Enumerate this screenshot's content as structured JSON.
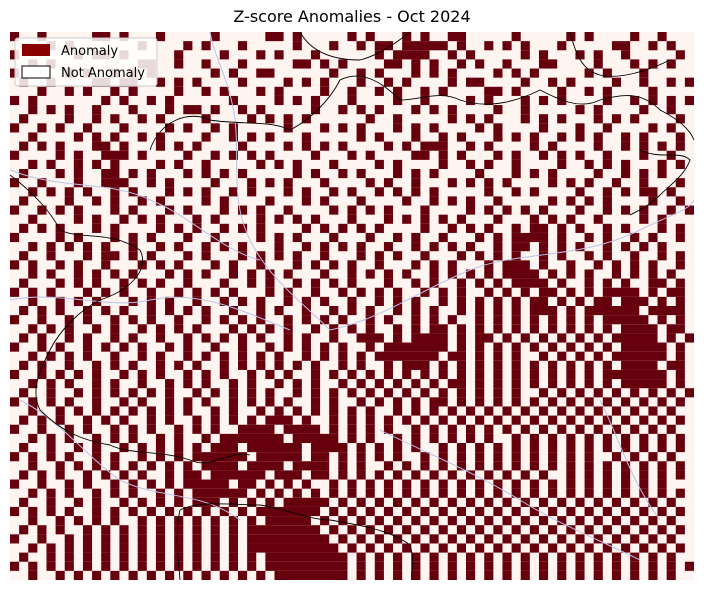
{
  "title": "Z-score Anomalies - Oct 2024",
  "legend": [
    {
      "label": "Anomaly",
      "color": "#8b0000"
    },
    {
      "label": "Not Anomaly",
      "color": "#ffffff"
    }
  ],
  "raster": {
    "cell_color": "#67000d",
    "background": "#fff5f0",
    "rows": [
      "#..#.....##.#...#.....#.....##.#.....#.#...#.#..##.....#.....#.#....#..#...",
      "....#.#.......#....#.#...#.....#...#..#.##.#####.#..#.#.#...#.....##..#.#..",
      "#......#.##.#.....#....#...#.#...#......#.####..#.#.....#.#...#.#..#.....#.",
      "..#.#.........##..#..#...#.....##.#.#....##.#.#..#.#..#...##....#...#.#.#..",
      "#.....#.#..#.#.#......#.#..##......#..#.#...#.#.#....#.#.#.....#.#...#.....",
      ".#..#....##.##..#.#.#....#....#.#.#...#..#.#....#.##....#..#.#....#..#..#.#",
      "...#..#.#..#.#....#..#.#...#.#....#..#..#.#..#.#....##.#....#..#.#....#....",
      "#.#.......#.#..#.#......#....#.#.#...#....#..#....#.#...#.#.#....#..#.#.#.#",
      "..#.#.#..#...#...#.##.#..#.#.....#..#.#.#...#.#.#....#..#.....#.#....#..#..",
      ".#....#..#.#..#.#....#....#.#.#.#......#..#.....#.#.#...#.#.#...#.#.#....#.",
      "#..#.#..#...#....#.#..#.#.....#...#.#.#...#.#.#....#.#....#...#..#....#.#..",
      "..#....#.#.#..#.#....#..#.#.#...#.....#.#...#..#.#...#.#.#..#.#.#..#.#...#.",
      ".#.#.#...##.#...#.#.#....#....#.#.#.#....#.#.###..#.#....#.#....#..#.#.#.#.",
      "#....#.#..###.#....#..#.#.#.#....#...#.#....##.#.#...#.#..#.#.#..#...#..#..",
      "..#.#..#.#.#....#.#..#.....#.#.#...#....#.#....#..#.#..#....#..#.#.#...#.#.",
      ".#...#.#..##.#.#...#.#.#.#.....#.#..#.#...#.#.#....#...#.#.#....#..#.#.#...",
      "#..#...#..###..#.#....#...#.#.#...#....#.#..#...#.#.#.#....#.#.#..#..#...#.",
      "..#.#.#.#..#.#...#.#.#..#.#...#.#..#.#..#.#.#.#.....#..#.#....#..#.#.##.#..",
      ".#....#..#.#..#.#....#.#....#...#.#...#....#..#.#.#..#.....#.#.#.#....#..#.",
      "#..#.#.#...#.#...#.#...#.#.#..#....#.#.#.#...#....#.#.#.#.#...#..#.#.#..#.#",
      "..#....#.#..#.#.#...#.#....#.#.#.#...#...#.#.#.#.#...#...#.#.#..#....#.#...",
      ".#.#.#...#.#....#.#.#..#.#.#....#.#.#.#.#....#..#.#.#..#.##.#.#..#.#...#.#.",
      "#....#.#...#.#.#...#..#....#.#.#...#...#..#.#..#...#.#.####.#..#.#..#.#..#.",
      "..#.#.#.#.#..#..#.#..#.#.#...#..#.#.#.#..#..#.#.#.#..#.##.#.#.#..#.#.#.#...",
      ".#..#...#.##.#.#...#.#...#.#.#.#..#...#.#.#..#...#.#.#.#..#.#..#.#..#..#.#.",
      "#.#..#.#..#...#.#.#...#.#..#...#.#.#.#..#...#.#.#...#.###.#..#..#.#.#.#..#.",
      "..#.#..#.#.#.#...#.#.#..#.#.#.#...#..#.#.#.#..#.#.#.#.####.#.#.#..#.#.#.#..",
      ".#...#.#.#..#.#.#..#...#..#.#..#.#.#.#...#..#.#..#.#.#.####.#..#.#.#..##.#.",
      "#.#.#...#.#.#..#..#.#.#.#...#.#..#..#.#.#.#..#.#.#..#.#.#.##.#.#.####.#.##.",
      "..#..#.#.#...#.#.#..#..#.#.#..#.#.#..#..#.#.#..#.#.#.#.#.##.#.#.##.###.#.#.",
      ".#.#.#..#.#.#..#.#.#.#..#..#.#..#..#.#.#..#.#.#..#.#.#.#.###.#.######.####.",
      "#..#..#.#..#.#.#..#..#.#.#.#..#.#.#.#..#.#..#.#.#..#.#.#.#.#.#.#.#####.#.#.",
      "..#.#.#..#.#..#.#.#.#...#.#.#.#..#.#.#.#..#.#.##.#.#.#.#.#.#.#.#.#.####.##.",
      ".#.#..#.#..#.#..#..#.#.#.#.#..#.#..#..###.#.####.#.##.#.#.#.#.#.#.#####.#.#",
      "#..#.#..#.#.#.#..#.#..#..#..#.#.#.#.#..#.#######.#.#.#.#.#.#.#.#.#.#####.#.",
      "..#.#.#.#..#..#.#..#.#.#.#.#.#..#.#.#.#.#######.##.#.#.#..#.#.#.#.######.#.",
      ".#.#..#..#.#.#..#.#.#..#.#.#.#.#.#..#.#..#.###.#.#.#.#.#.#.#.#.#.#.####.##.",
      "#..#.#.#.#..#.#.#..#.#.#..#.#.#..#.#.#.#.#.#.#.#.#.#.#.#.#.#.#.#.#######.#.",
      "..#.#.#..#.#..#..#.#.#..#.#..#.#.#..#.#.#.#.#.#.##.#.#.#.#.#.#.#.#.#####.#.",
      ".#..#..#.#.#.#.#.#..#.#.#.#.#..#.#.#.#.#.#.#.#.#.#.#.#.#..#.#.#.#.#.#.#.#.#",
      "#.#.#.#..#..#.#..#.#.#..#.#.#.#..#.#..#.#.#.#.##.#.#.#.#.#.#.#.#.#.#.#.#.#.",
      "..#..#.#.#.#.#.#.#.#..#.#..#.#.#.#.#.#.#..#.#.#.#.#.#.#.#.#.#.#.#.#.#.#.#..",
      ".#.#.#..#.#.#..#.#..#.#.#.#.###.#..#.#.#.#.#.#.#.#.#.#.#.#.#.#.#.#.#.#.#.#.",
      "#..#..#.#..#.#.#..#.#.#..####.####.#.#.#.#..#.#.#.#.#.#.#.#.#.#.#.#.#.#.#..",
      "..#.#.#..#.#.#..#.#..#.#######.#####.#.#..#.#.#.#.#.#..#.#.#.#.#.#.#.#.#.#.",
      ".#..#..#.#..#.#.#.#.#.###.######.####.#.#.#.#..#.#.#.#.#.#.#.#.#.#.#.#.#.#.",
      "#.#.#.#..#.#..#.#.#.######.#####.##.#.#.#.#..#.#.#.#.#.#.#.#.#.#..#.#.#.#..",
      "..#..#.#.#.#.#.#.#.#.####.####.####.#.#..#.#.#.#.#.#.#.#.#.#.#.#.#.#.#.#.#.",
      ".#.#.#..#.#.#.#..#.##.######.###.##.#.#.#.#.#.#.#.#.#.#.#.#..#.#.#.#.#.#.#.",
      "#..#..#.#..#.#.#.#.#####.##.#.#.#..#.#.#.#.#.#.#.#.#.#.#.#.#.#.#.#.#.#.#...",
      "..#.#.#..#.#.#..#.#.######.#.#.#.#.#.#.#.#.#.#.#.#.#.#.#.#.#.#.#.#.#.#.#.#.",
      ".#..#..#.#..#.#.#.#.###.#.#.#.#####.#.#.#.#.#.#.#.#.#.#.#.#.#.#.#.#.#.#.#..",
      "#.#.#.#..#.#.#.#.#.#.#.#.#.#######.#.#.#.#.#.#.#.#.#.#.#.#.#.#.#.#.#.#.#.#.",
      "..#..#.#.#.#..#.#.#.#.#.#.#.#####.#.#.#.#.#.#.#.#.#.#.#.#.#.#.#.#.#.#.#.#..",
      ".#.#.#..#.#.#.#.#.#.#.#.#.########.#.#.#.#.#.#.#.#.#.#.#.#.#.#.#.#.#.#.#.#.",
      "#..#..#.#.#.#.#.#.#.#.#.#.#########.#.#.#.#.#.#.#.#.#.#.#.#.#.#.#.#.#.#.#..",
      "..#.#.#.#.#.#.#.#.#.#.#.#.##########.#.#.#.#.#.#.#.#.#.#.#.#.#.#.#.#.#.#.#.",
      ".#..#.#.#.#.#.#.#.#.#.#.#.#.#########.#.#.#.#.#.#.#.#.#.#.#.#.#.#.#.#.#.#..",
      "#.#.#.#.#.#.#.#.#.#.#.#.#.#.#########.#.#.#.#.#.#.#.#.#.#.#.#.#.#.#.#.#.#.#",
      "..#..#.#.#.#.#.#.#.#.#.#.#.#.########.#.#.#.#.#.#.#.#.#.#.#.#.#.#.#.#.#.#.."
    ]
  }
}
